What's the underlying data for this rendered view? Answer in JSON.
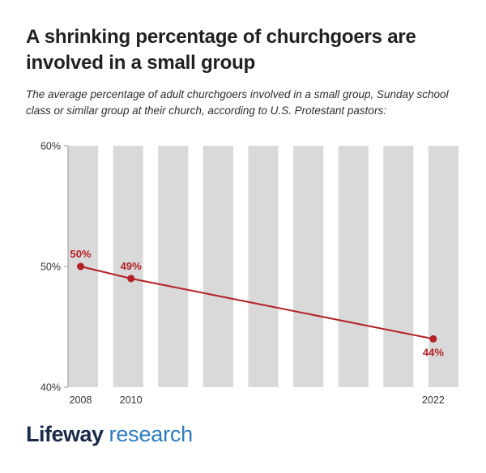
{
  "header": {
    "title": "A shrinking percentage of churchgoers are involved in a small group",
    "subtitle": "The average percentage of adult churchgoers involved in a small group, Sunday school class or similar group at their church, according to U.S. Protestant pastors:"
  },
  "chart_data": {
    "type": "line",
    "title": "",
    "x": [
      2008,
      2010,
      2022
    ],
    "x_tick_labels": [
      "2008",
      "2010",
      "2022"
    ],
    "values": [
      50,
      49,
      44
    ],
    "point_labels": [
      "50%",
      "49%",
      "44%"
    ],
    "label_positions": [
      "above",
      "above",
      "below"
    ],
    "y_ticks": [
      40,
      50,
      60
    ],
    "y_tick_labels": [
      "40%",
      "50%",
      "60%"
    ],
    "ylim": [
      40,
      60
    ],
    "xlim": [
      2007.5,
      2023
    ],
    "grid": false,
    "legend": "none",
    "line_color": "#b32025",
    "stripe_color": "#d9d9d9",
    "stripe_count": 9,
    "axis_color": "#9a9a9a",
    "tick_label_color": "#333333"
  },
  "footer": {
    "brand_primary": "Lifeway",
    "brand_secondary": "research",
    "brand_primary_color": "#1a2b49",
    "brand_secondary_color": "#2e7cc0"
  }
}
